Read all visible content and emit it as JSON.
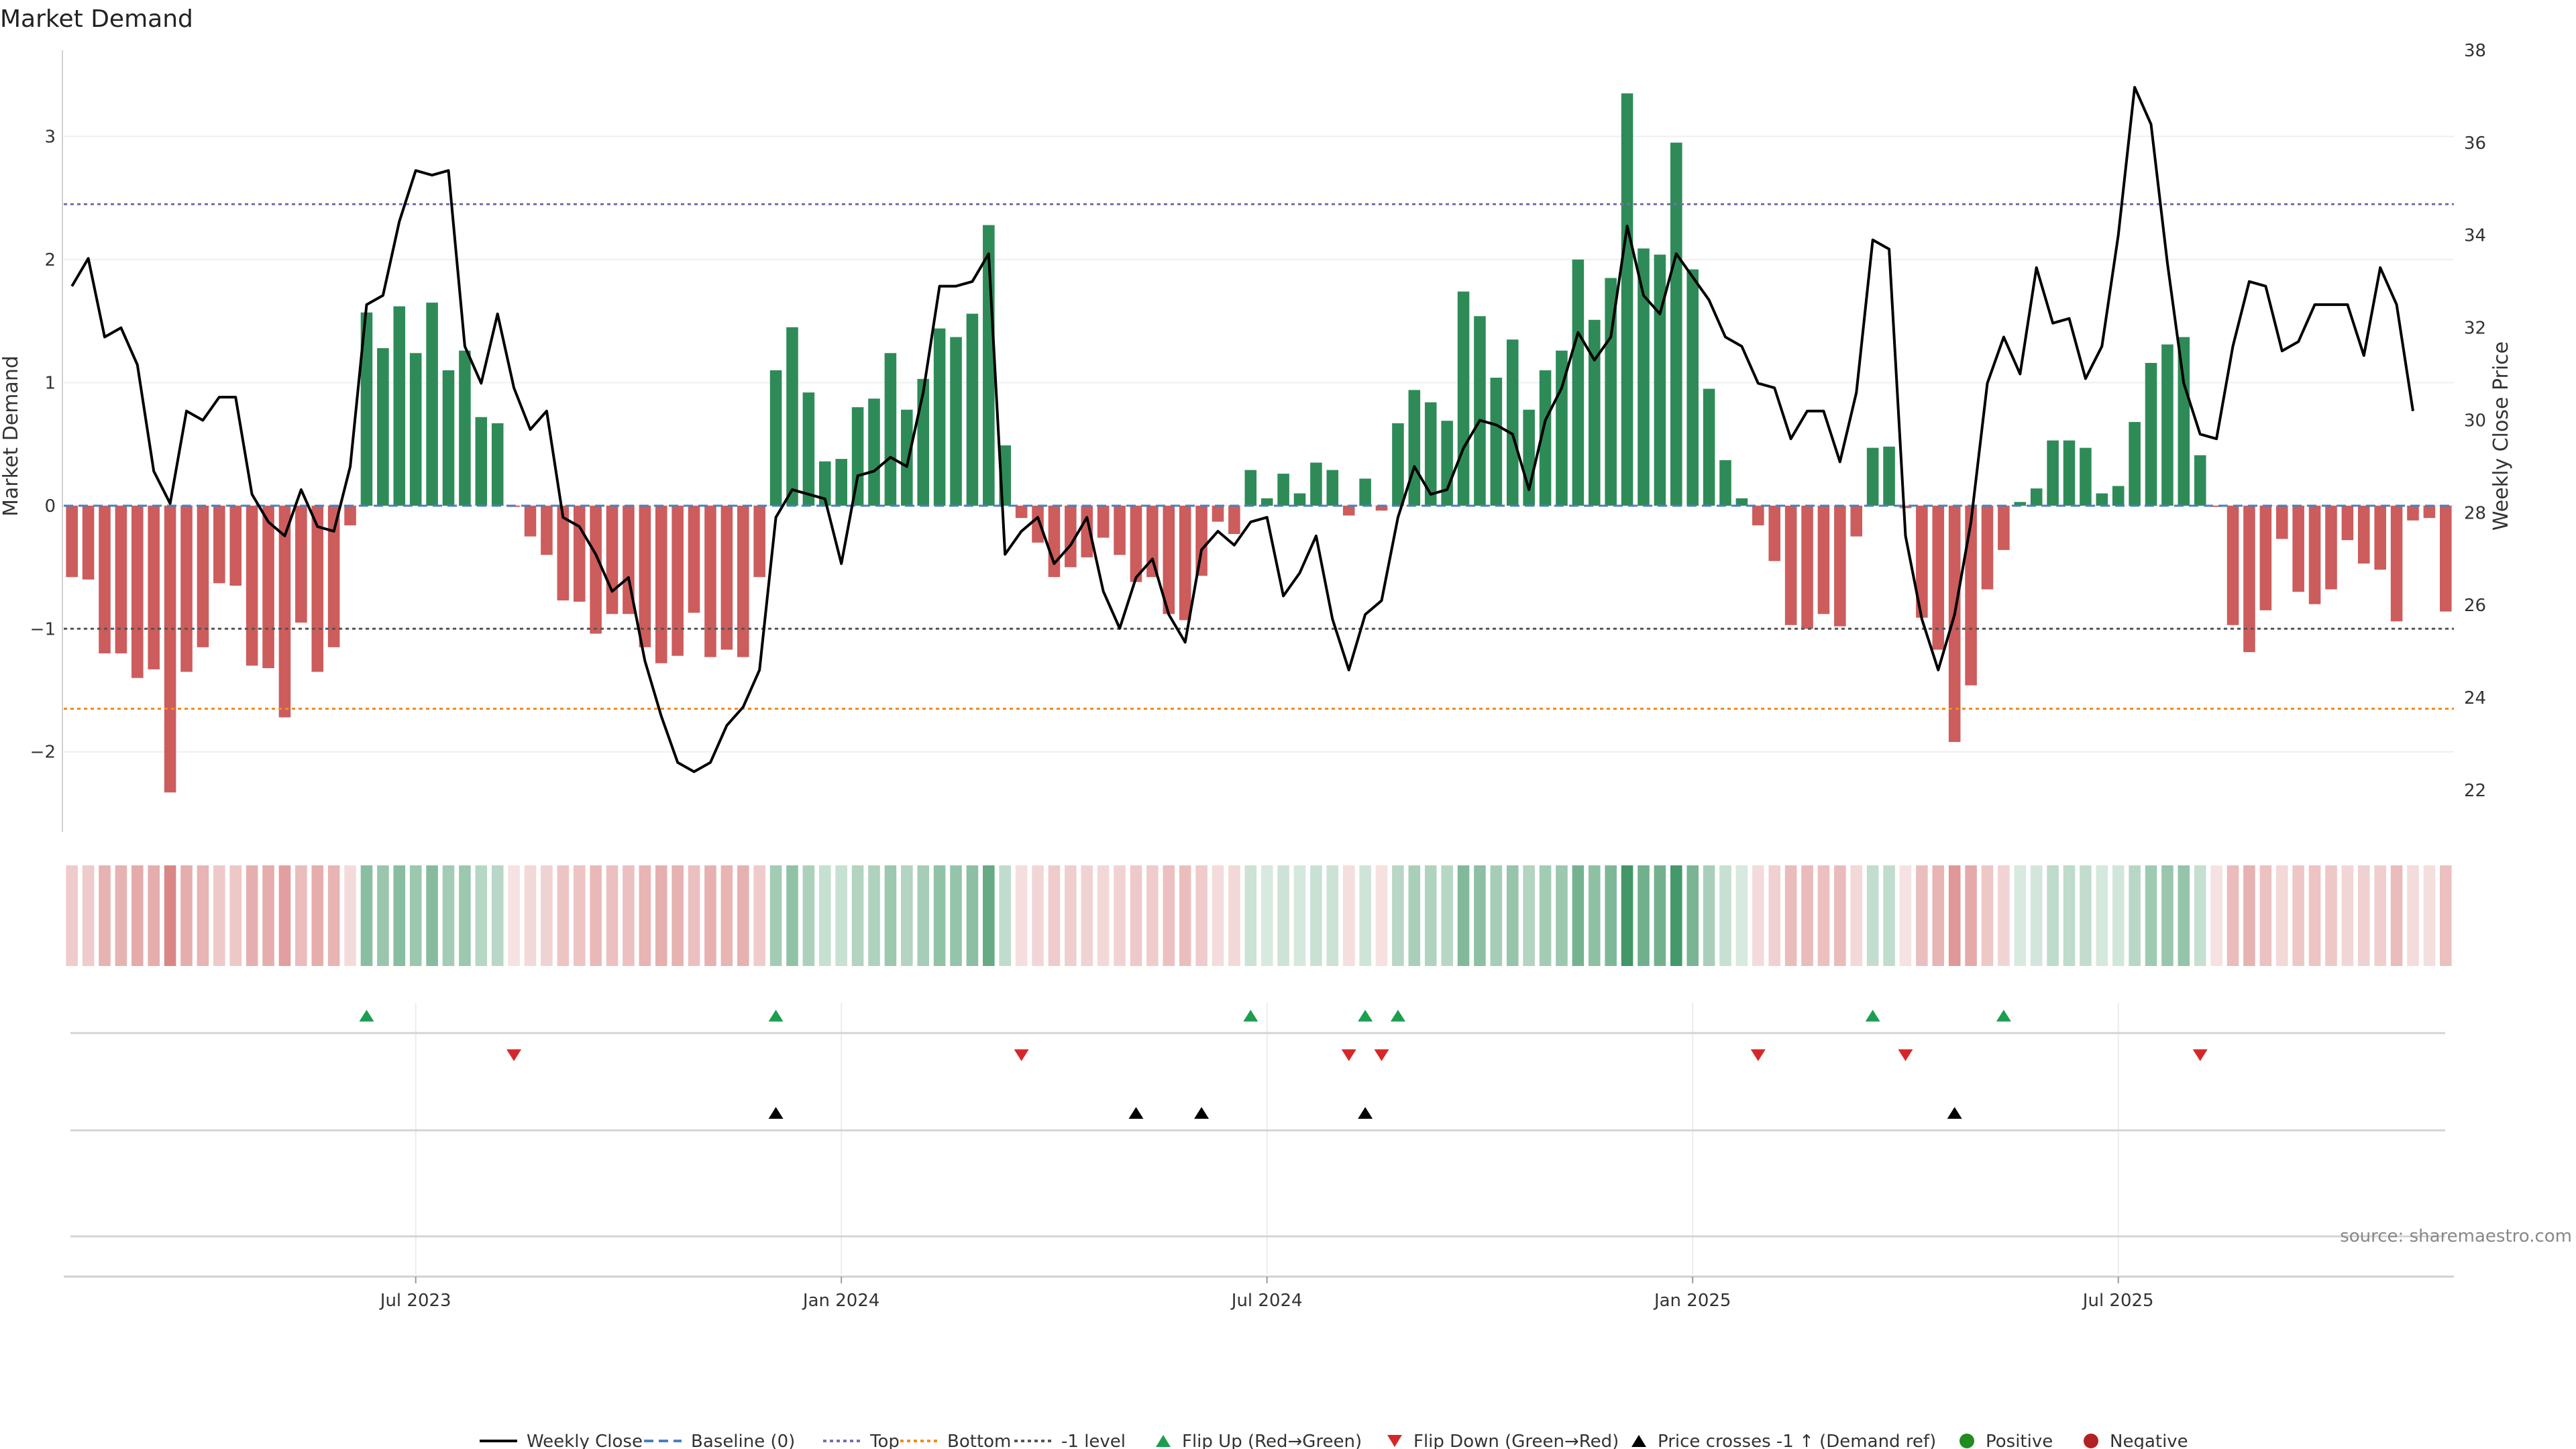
{
  "chart_data": {
    "type": "bar",
    "title": "Market Demand",
    "ylabel": "Market Demand",
    "ylabel_right": "Weekly Close Price",
    "source": "source: sharemaestro.com",
    "ylim": [
      -2.65,
      3.7
    ],
    "y2lim": [
      21.1,
      38.0
    ],
    "yticks": [
      {
        "v": -2,
        "label": "−2"
      },
      {
        "v": -1,
        "label": "−1"
      },
      {
        "v": 0,
        "label": "0"
      },
      {
        "v": 1,
        "label": "1"
      },
      {
        "v": 2,
        "label": "2"
      },
      {
        "v": 3,
        "label": "3"
      }
    ],
    "y2ticks": [
      22,
      24,
      26,
      28,
      30,
      32,
      34,
      36,
      38
    ],
    "x_ticks": [
      {
        "week": 21.5,
        "label": "Jul 2023"
      },
      {
        "week": 47.5,
        "label": "Jan 2024"
      },
      {
        "week": 73.5,
        "label": "Jul 2024"
      },
      {
        "week": 99.5,
        "label": "Jan 2025"
      },
      {
        "week": 125.5,
        "label": "Jul 2025"
      }
    ],
    "reference_lines": {
      "baseline": 0,
      "top": 2.45,
      "bottom": -1.65,
      "minus_one": -1
    },
    "demand": [
      -0.58,
      -0.6,
      -1.2,
      -1.2,
      -1.4,
      -1.33,
      -2.33,
      -1.35,
      -1.15,
      -0.63,
      -0.65,
      -1.3,
      -1.32,
      -1.72,
      -0.95,
      -1.35,
      -1.15,
      -0.16,
      1.57,
      1.28,
      1.62,
      1.24,
      1.65,
      1.1,
      1.26,
      0.72,
      0.67,
      -0.01,
      -0.25,
      -0.4,
      -0.77,
      -0.78,
      -1.04,
      -0.88,
      -0.88,
      -1.15,
      -1.28,
      -1.22,
      -0.87,
      -1.23,
      -1.17,
      -1.23,
      -0.58,
      1.1,
      1.45,
      0.92,
      0.36,
      0.38,
      0.8,
      0.87,
      1.24,
      0.78,
      1.03,
      1.44,
      1.37,
      1.56,
      2.28,
      0.49,
      -0.1,
      -0.3,
      -0.58,
      -0.5,
      -0.42,
      -0.26,
      -0.4,
      -0.62,
      -0.58,
      -0.88,
      -0.93,
      -0.57,
      -0.13,
      -0.23,
      0.29,
      0.06,
      0.26,
      0.1,
      0.35,
      0.29,
      -0.08,
      0.22,
      -0.04,
      0.67,
      0.94,
      0.84,
      0.69,
      1.74,
      1.54,
      1.04,
      1.35,
      0.78,
      1.1,
      1.26,
      2.0,
      1.51,
      1.85,
      3.35,
      2.09,
      2.04,
      2.95,
      1.92,
      0.95,
      0.37,
      0.06,
      -0.16,
      -0.45,
      -0.97,
      -1.0,
      -0.88,
      -0.98,
      -0.25,
      0.47,
      0.48,
      -0.02,
      -0.91,
      -1.17,
      -1.92,
      -1.46,
      -0.68,
      -0.36,
      0.03,
      0.14,
      0.53,
      0.53,
      0.47,
      0.1,
      0.16,
      0.68,
      1.16,
      1.31,
      1.37,
      0.41,
      -0.01,
      -0.97,
      -1.19,
      -0.85,
      -0.27,
      -0.7,
      -0.8,
      -0.68,
      -0.28,
      -0.47,
      -0.52,
      -0.94,
      -0.12,
      -0.1,
      -0.86
    ],
    "weekly_close": [
      32.9,
      33.5,
      31.8,
      32.0,
      31.2,
      28.9,
      28.2,
      30.2,
      30.0,
      30.5,
      30.5,
      28.4,
      27.8,
      27.5,
      28.5,
      27.7,
      27.6,
      29.0,
      32.5,
      32.7,
      34.3,
      35.4,
      35.3,
      35.4,
      31.6,
      30.8,
      32.3,
      30.7,
      29.8,
      30.2,
      27.9,
      27.7,
      27.1,
      26.3,
      26.6,
      24.8,
      23.6,
      22.6,
      22.4,
      22.6,
      23.4,
      23.8,
      24.6,
      27.9,
      28.5,
      28.4,
      28.3,
      26.9,
      28.8,
      28.9,
      29.2,
      29.0,
      30.6,
      32.9,
      32.9,
      33.0,
      33.6,
      27.1,
      27.6,
      27.9,
      26.9,
      27.3,
      27.9,
      26.3,
      25.5,
      26.6,
      27.0,
      25.8,
      25.2,
      27.2,
      27.6,
      27.3,
      27.8,
      27.9,
      26.2,
      26.7,
      27.5,
      25.7,
      24.6,
      25.8,
      26.1,
      27.9,
      29.0,
      28.4,
      28.5,
      29.4,
      30.0,
      29.9,
      29.7,
      28.5,
      30.0,
      30.7,
      31.9,
      31.3,
      31.8,
      34.2,
      32.7,
      32.3,
      33.6,
      33.1,
      32.6,
      31.8,
      31.6,
      30.8,
      30.7,
      29.6,
      30.2,
      30.2,
      29.1,
      30.6,
      33.9,
      33.7,
      27.5,
      25.7,
      24.6,
      25.8,
      27.8,
      30.8,
      31.8,
      31.0,
      33.3,
      32.1,
      32.2,
      30.9,
      31.6,
      34.0,
      37.2,
      36.4,
      33.4,
      30.8,
      29.7,
      29.6,
      31.6,
      33.0,
      32.9,
      31.5,
      31.7,
      32.5,
      32.5,
      32.5,
      31.4,
      33.3,
      32.5,
      30.2
    ],
    "flip_up_weeks": [
      18,
      43,
      72,
      79,
      81,
      110,
      118
    ],
    "flip_down_weeks": [
      27,
      58,
      78,
      80,
      103,
      112,
      130
    ],
    "price_cross_weeks": [
      43,
      65,
      69,
      79,
      115
    ],
    "legend": [
      {
        "key": "weekly_close",
        "label": "Weekly Close"
      },
      {
        "key": "baseline",
        "label": "Baseline (0)"
      },
      {
        "key": "top",
        "label": "Top"
      },
      {
        "key": "bottom",
        "label": "Bottom"
      },
      {
        "key": "minus_one",
        "label": "-1 level"
      },
      {
        "key": "flip_up",
        "label": "Flip Up (Red→Green)"
      },
      {
        "key": "flip_down",
        "label": "Flip Down (Green→Red)"
      },
      {
        "key": "price_cross",
        "label": "Price crosses -1 ↑ (Demand ref)"
      },
      {
        "key": "positive",
        "label": "Positive"
      },
      {
        "key": "negative",
        "label": "Negative"
      }
    ],
    "colors": {
      "positive": "#2e8b57",
      "negative": "#cd5c5c",
      "close_line": "#000000",
      "baseline": "#4a7fbf",
      "top": "#7b6bb0",
      "bottom": "#f08c1e",
      "minus_one": "#555555",
      "flip_up": "#1b9e50",
      "flip_down": "#d62728",
      "price_cross": "#000000",
      "positive_dot": "#228b22",
      "negative_dot": "#b22222"
    }
  }
}
